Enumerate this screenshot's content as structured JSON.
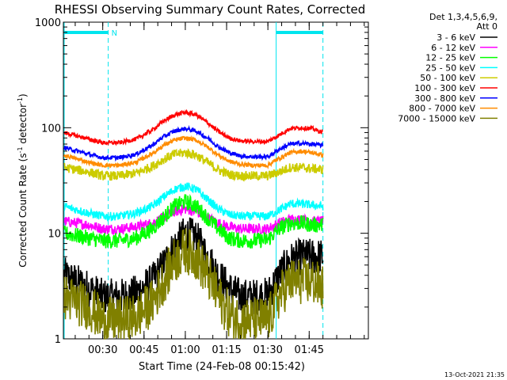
{
  "chart_data": {
    "type": "line",
    "title": "RHESSI Observing Summary Count Rates, Corrected",
    "xlabel": "Start Time (24-Feb-08 00:15:42)",
    "ylabel_main": "Corrected Count Rate (s",
    "ylabel_sup1": "-1",
    "ylabel_mid": " detector",
    "ylabel_sup2": "-1",
    "ylabel_end": ")",
    "yscale": "log",
    "ylim": [
      1,
      1000
    ],
    "xlim": [
      15.7,
      126.5
    ],
    "x_ticks": [
      {
        "value": 30,
        "label": "00:30"
      },
      {
        "value": 45,
        "label": "00:45"
      },
      {
        "value": 60,
        "label": "01:00"
      },
      {
        "value": 75,
        "label": "01:15"
      },
      {
        "value": 90,
        "label": "01:30"
      },
      {
        "value": 105,
        "label": "01:45"
      }
    ],
    "y_ticks": [
      {
        "value": 1,
        "label": "1"
      },
      {
        "value": 10,
        "label": "10"
      },
      {
        "value": 100,
        "label": "100"
      },
      {
        "value": 1000,
        "label": "1000"
      }
    ],
    "legend_header": [
      "Det 1,3,4,5,6,9,",
      "Att 0"
    ],
    "legend_position": "right",
    "series": [
      {
        "name": "3 - 6 keV",
        "color": "#000000",
        "noise": 0.35,
        "x": [
          16,
          25,
          30,
          36,
          42,
          48,
          52,
          56,
          60,
          64,
          68,
          72,
          76,
          80,
          85,
          90,
          94,
          98,
          102,
          106,
          110
        ],
        "values": [
          4.0,
          3.0,
          2.5,
          2.5,
          2.7,
          3.5,
          5.0,
          7.5,
          10.0,
          9.0,
          6.0,
          4.0,
          3.0,
          2.5,
          2.5,
          2.6,
          4.0,
          5.5,
          6.0,
          6.0,
          6.0
        ]
      },
      {
        "name": "6 - 12 keV",
        "color": "#ff00ff",
        "noise": 0.1,
        "x": [
          16,
          25,
          30,
          36,
          42,
          48,
          52,
          56,
          60,
          64,
          68,
          72,
          76,
          80,
          85,
          90,
          94,
          98,
          102,
          106,
          110
        ],
        "values": [
          13.0,
          12.0,
          11.0,
          11.0,
          11.5,
          12.5,
          14.0,
          16.0,
          17.0,
          16.0,
          14.0,
          12.5,
          11.5,
          11.0,
          11.0,
          11.0,
          12.5,
          13.5,
          13.5,
          13.0,
          13.0
        ]
      },
      {
        "name": "12 - 25 keV",
        "color": "#00ff00",
        "noise": 0.15,
        "x": [
          16,
          25,
          30,
          36,
          42,
          48,
          52,
          56,
          60,
          64,
          68,
          72,
          76,
          80,
          85,
          90,
          94,
          98,
          102,
          106,
          110
        ],
        "values": [
          10.0,
          9.0,
          8.5,
          8.5,
          9.0,
          11.0,
          14.0,
          18.0,
          20.0,
          18.0,
          14.0,
          11.0,
          9.0,
          8.5,
          8.5,
          8.7,
          11.0,
          12.5,
          12.5,
          12.0,
          12.0
        ]
      },
      {
        "name": "25 - 50 keV",
        "color": "#00ffff",
        "noise": 0.08,
        "x": [
          16,
          25,
          30,
          36,
          42,
          48,
          52,
          56,
          60,
          64,
          68,
          72,
          76,
          80,
          85,
          90,
          94,
          98,
          102,
          106,
          110
        ],
        "values": [
          18.0,
          15.5,
          14.5,
          14.5,
          15.5,
          18.0,
          22.0,
          26.0,
          28.0,
          26.0,
          21.0,
          17.0,
          15.0,
          14.5,
          14.5,
          14.5,
          16.5,
          19.0,
          19.0,
          18.5,
          18.0
        ]
      },
      {
        "name": "50 - 100 keV",
        "color": "#cccc00",
        "noise": 0.09,
        "x": [
          16,
          25,
          30,
          36,
          42,
          48,
          52,
          56,
          60,
          64,
          68,
          72,
          76,
          80,
          85,
          90,
          94,
          98,
          102,
          106,
          110
        ],
        "values": [
          42.0,
          38.0,
          35.0,
          35.0,
          37.0,
          43.0,
          50.0,
          56.0,
          58.0,
          55.0,
          47.0,
          40.0,
          36.0,
          35.0,
          35.0,
          35.0,
          38.0,
          42.0,
          42.0,
          41.0,
          40.0
        ]
      },
      {
        "name": "100 - 300 keV",
        "color": "#ff0000",
        "noise": 0.04,
        "x": [
          16,
          25,
          30,
          36,
          42,
          48,
          52,
          56,
          60,
          64,
          68,
          72,
          76,
          80,
          85,
          90,
          94,
          98,
          102,
          106,
          110
        ],
        "values": [
          90.0,
          78.0,
          72.0,
          72.0,
          78.0,
          95.0,
          115.0,
          132.0,
          140.0,
          132.0,
          112.0,
          92.0,
          80.0,
          75.0,
          74.0,
          74.0,
          85.0,
          98.0,
          100.0,
          98.0,
          90.0
        ]
      },
      {
        "name": "300 - 800 keV",
        "color": "#0000ff",
        "noise": 0.04,
        "x": [
          16,
          25,
          30,
          36,
          42,
          48,
          52,
          56,
          60,
          64,
          68,
          72,
          76,
          80,
          85,
          90,
          94,
          98,
          102,
          106,
          110
        ],
        "values": [
          65.0,
          56.0,
          52.0,
          52.0,
          56.0,
          68.0,
          82.0,
          93.0,
          98.0,
          93.0,
          80.0,
          66.0,
          58.0,
          54.0,
          53.0,
          53.0,
          62.0,
          70.0,
          71.0,
          70.0,
          68.0
        ]
      },
      {
        "name": "800 - 7000 keV",
        "color": "#ff8c00",
        "noise": 0.04,
        "x": [
          16,
          25,
          30,
          36,
          42,
          48,
          52,
          56,
          60,
          64,
          68,
          72,
          76,
          80,
          85,
          90,
          94,
          98,
          102,
          106,
          110
        ],
        "values": [
          55.0,
          47.0,
          44.0,
          44.0,
          47.0,
          57.0,
          68.0,
          76.0,
          80.0,
          76.0,
          66.0,
          55.0,
          48.0,
          45.0,
          44.0,
          44.0,
          51.0,
          58.0,
          60.0,
          58.0,
          55.0
        ]
      },
      {
        "name": "7000 - 15000 keV",
        "color": "#808000",
        "noise": 0.45,
        "x": [
          16,
          25,
          30,
          36,
          42,
          48,
          52,
          56,
          60,
          64,
          68,
          72,
          76,
          80,
          85,
          90,
          94,
          98,
          102,
          106,
          110
        ],
        "values": [
          2.5,
          2.0,
          1.5,
          1.5,
          1.6,
          2.2,
          3.5,
          5.5,
          7.0,
          6.0,
          4.0,
          2.5,
          1.7,
          1.5,
          1.5,
          1.5,
          2.5,
          3.5,
          3.5,
          3.5,
          3.0
        ]
      }
    ],
    "annotations": {
      "night_bars": [
        {
          "from": 16,
          "to": 32,
          "label": "N"
        },
        {
          "from": 93,
          "to": 110,
          "label": ""
        }
      ],
      "vertical_lines": [
        {
          "x": 16,
          "style": "solid"
        },
        {
          "x": 32,
          "style": "dashed"
        },
        {
          "x": 93,
          "style": "solid"
        },
        {
          "x": 110,
          "style": "dashed"
        }
      ]
    }
  },
  "footer": {
    "timestamp": "13-Oct-2021 21:35"
  }
}
